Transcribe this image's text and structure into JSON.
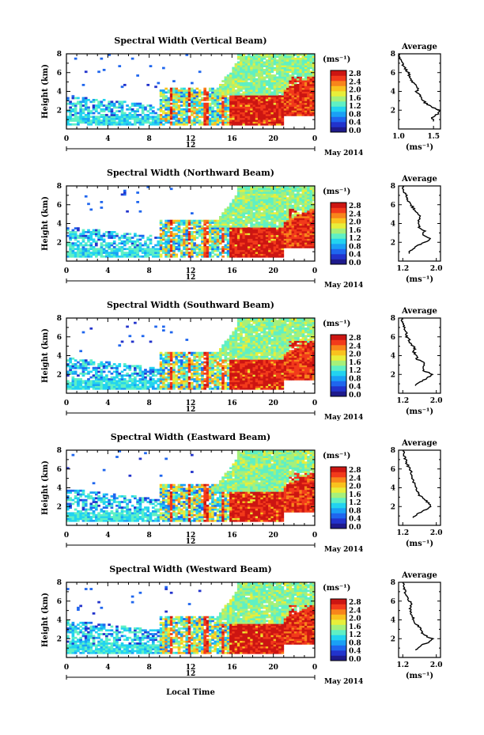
{
  "colors": {
    "colormap": [
      "#1e1a8c",
      "#2233cc",
      "#1f66ee",
      "#1aa0f5",
      "#22d3f0",
      "#5ff0c4",
      "#a6f07a",
      "#e8ee3a",
      "#f9c21e",
      "#f8851b",
      "#f23a1b",
      "#cc1512"
    ],
    "background": "#ffffff"
  },
  "common": {
    "xlabel": "Local Time",
    "time_ticks": [
      "0",
      "4",
      "8",
      "12",
      "16",
      "20",
      "0"
    ],
    "date_label": "12",
    "month_label": "May 2014",
    "height_ticks": [
      "2",
      "4",
      "6",
      "8"
    ],
    "ylabel": "Height (km)",
    "unit_label": "(ms⁻¹)",
    "colorbar_ticks": [
      "0.0",
      "0.4",
      "0.8",
      "1.2",
      "1.6",
      "2.0",
      "2.4",
      "2.8"
    ],
    "profile_title": "Average",
    "profile_xlabel": "(ms⁻¹)"
  },
  "chart_data": [
    {
      "type": "heatmap",
      "title": "Spectral Width (Vertical Beam)",
      "profile_ticks": [
        "1.0",
        "1.5"
      ],
      "profile_xlim": [
        1.0,
        1.6
      ],
      "profile": [
        {
          "h": 0.8,
          "v": 1.5
        },
        {
          "h": 1.2,
          "v": 1.48
        },
        {
          "h": 1.6,
          "v": 1.56
        },
        {
          "h": 2.0,
          "v": 1.58
        },
        {
          "h": 2.4,
          "v": 1.46
        },
        {
          "h": 2.8,
          "v": 1.38
        },
        {
          "h": 3.2,
          "v": 1.34
        },
        {
          "h": 3.6,
          "v": 1.3
        },
        {
          "h": 4.0,
          "v": 1.26
        },
        {
          "h": 4.4,
          "v": 1.28
        },
        {
          "h": 4.8,
          "v": 1.22
        },
        {
          "h": 5.2,
          "v": 1.18
        },
        {
          "h": 5.6,
          "v": 1.16
        },
        {
          "h": 6.0,
          "v": 1.14
        },
        {
          "h": 6.4,
          "v": 1.1
        },
        {
          "h": 6.8,
          "v": 1.06
        },
        {
          "h": 7.2,
          "v": 1.04
        },
        {
          "h": 7.6,
          "v": 1.02
        },
        {
          "h": 8.0,
          "v": 1.0
        }
      ]
    },
    {
      "type": "heatmap",
      "title": "Spectral Width (Northward Beam)",
      "profile_ticks": [
        "1.2",
        "2.0"
      ],
      "profile_xlim": [
        1.1,
        2.1
      ],
      "profile": [
        {
          "h": 0.8,
          "v": 1.35
        },
        {
          "h": 1.2,
          "v": 1.4
        },
        {
          "h": 1.6,
          "v": 1.52
        },
        {
          "h": 2.0,
          "v": 1.74
        },
        {
          "h": 2.4,
          "v": 1.86
        },
        {
          "h": 2.8,
          "v": 1.68
        },
        {
          "h": 3.2,
          "v": 1.72
        },
        {
          "h": 3.6,
          "v": 1.6
        },
        {
          "h": 4.0,
          "v": 1.55
        },
        {
          "h": 4.4,
          "v": 1.58
        },
        {
          "h": 4.8,
          "v": 1.62
        },
        {
          "h": 5.2,
          "v": 1.5
        },
        {
          "h": 5.6,
          "v": 1.46
        },
        {
          "h": 6.0,
          "v": 1.4
        },
        {
          "h": 6.4,
          "v": 1.34
        },
        {
          "h": 6.8,
          "v": 1.3
        },
        {
          "h": 7.2,
          "v": 1.26
        },
        {
          "h": 7.6,
          "v": 1.22
        },
        {
          "h": 8.0,
          "v": 1.2
        }
      ]
    },
    {
      "type": "heatmap",
      "title": "Spectral Width (Southward Beam)",
      "profile_ticks": [
        "1.2",
        "2.0"
      ],
      "profile_xlim": [
        1.1,
        2.1
      ],
      "profile": [
        {
          "h": 0.8,
          "v": 1.5
        },
        {
          "h": 1.2,
          "v": 1.6
        },
        {
          "h": 1.6,
          "v": 1.78
        },
        {
          "h": 2.0,
          "v": 1.92
        },
        {
          "h": 2.4,
          "v": 1.7
        },
        {
          "h": 2.8,
          "v": 1.66
        },
        {
          "h": 3.2,
          "v": 1.72
        },
        {
          "h": 3.6,
          "v": 1.55
        },
        {
          "h": 4.0,
          "v": 1.52
        },
        {
          "h": 4.4,
          "v": 1.46
        },
        {
          "h": 4.8,
          "v": 1.48
        },
        {
          "h": 5.2,
          "v": 1.4
        },
        {
          "h": 5.6,
          "v": 1.36
        },
        {
          "h": 6.0,
          "v": 1.3
        },
        {
          "h": 6.4,
          "v": 1.28
        },
        {
          "h": 6.8,
          "v": 1.24
        },
        {
          "h": 7.2,
          "v": 1.22
        },
        {
          "h": 7.6,
          "v": 1.2
        },
        {
          "h": 8.0,
          "v": 1.18
        }
      ]
    },
    {
      "type": "heatmap",
      "title": "Spectral Width (Eastward Beam)",
      "profile_ticks": [
        "1.2",
        "2.0"
      ],
      "profile_xlim": [
        1.1,
        2.1
      ],
      "profile": [
        {
          "h": 0.8,
          "v": 1.45
        },
        {
          "h": 1.2,
          "v": 1.55
        },
        {
          "h": 1.6,
          "v": 1.72
        },
        {
          "h": 2.0,
          "v": 1.86
        },
        {
          "h": 2.4,
          "v": 1.8
        },
        {
          "h": 2.8,
          "v": 1.72
        },
        {
          "h": 3.2,
          "v": 1.6
        },
        {
          "h": 3.6,
          "v": 1.56
        },
        {
          "h": 4.0,
          "v": 1.52
        },
        {
          "h": 4.4,
          "v": 1.48
        },
        {
          "h": 4.8,
          "v": 1.44
        },
        {
          "h": 5.2,
          "v": 1.42
        },
        {
          "h": 5.6,
          "v": 1.4
        },
        {
          "h": 6.0,
          "v": 1.36
        },
        {
          "h": 6.4,
          "v": 1.32
        },
        {
          "h": 6.8,
          "v": 1.28
        },
        {
          "h": 7.2,
          "v": 1.25
        },
        {
          "h": 7.6,
          "v": 1.22
        },
        {
          "h": 8.0,
          "v": 1.2
        }
      ]
    },
    {
      "type": "heatmap",
      "title": "Spectral Width (Westward Beam)",
      "profile_ticks": [
        "1.2",
        "2.0"
      ],
      "profile_xlim": [
        1.1,
        2.1
      ],
      "profile": [
        {
          "h": 0.8,
          "v": 1.5
        },
        {
          "h": 1.2,
          "v": 1.6
        },
        {
          "h": 1.6,
          "v": 1.8
        },
        {
          "h": 2.0,
          "v": 1.9
        },
        {
          "h": 2.4,
          "v": 1.7
        },
        {
          "h": 2.8,
          "v": 1.64
        },
        {
          "h": 3.2,
          "v": 1.6
        },
        {
          "h": 3.6,
          "v": 1.5
        },
        {
          "h": 4.0,
          "v": 1.46
        },
        {
          "h": 4.4,
          "v": 1.44
        },
        {
          "h": 4.8,
          "v": 1.4
        },
        {
          "h": 5.2,
          "v": 1.38
        },
        {
          "h": 5.6,
          "v": 1.4
        },
        {
          "h": 6.0,
          "v": 1.36
        },
        {
          "h": 6.4,
          "v": 1.3
        },
        {
          "h": 6.8,
          "v": 1.26
        },
        {
          "h": 7.2,
          "v": 1.24
        },
        {
          "h": 7.6,
          "v": 1.22
        },
        {
          "h": 8.0,
          "v": 1.2
        }
      ]
    }
  ]
}
